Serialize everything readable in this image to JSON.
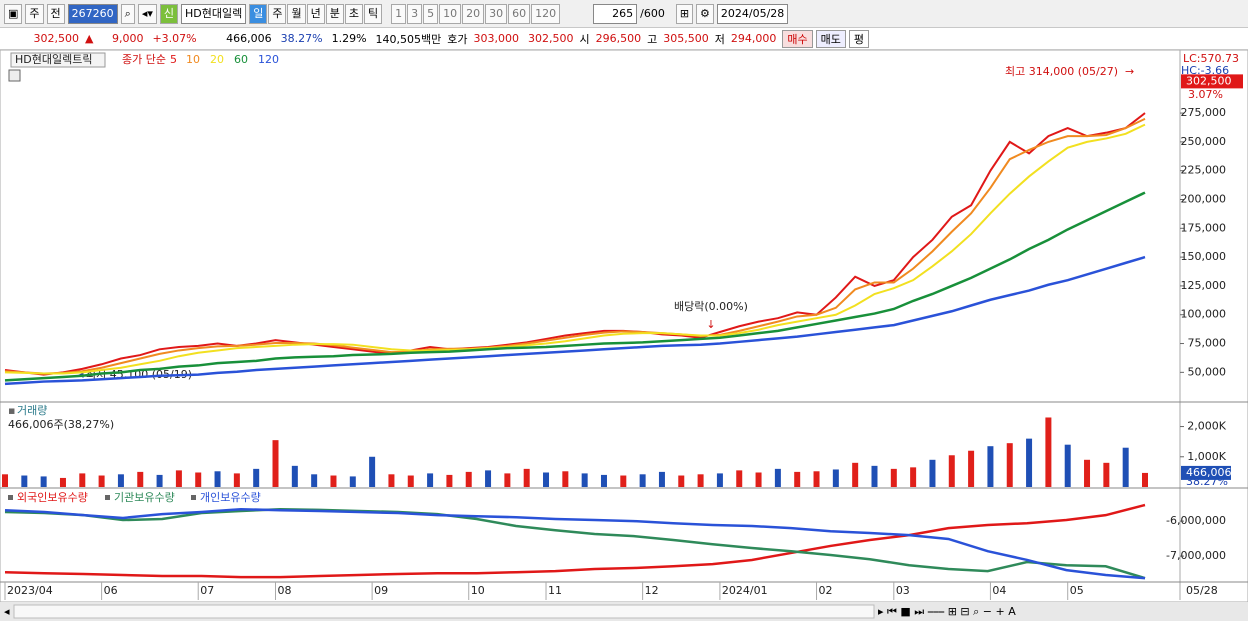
{
  "toolbar": {
    "market": "주",
    "prev": "전",
    "code": "267260",
    "new_badge": "신",
    "name": "HD현대일렉",
    "periods": [
      "일",
      "주",
      "월",
      "년",
      "분",
      "초",
      "틱"
    ],
    "intervals": [
      "1",
      "3",
      "5",
      "10",
      "20",
      "30",
      "60",
      "120"
    ],
    "count": "265",
    "max_count": "/600",
    "date": "2024/05/28"
  },
  "quote": {
    "price": "302,500",
    "arrow": "▲",
    "change": "9,000",
    "change_pct": "+3.07%",
    "volume": "466,006",
    "volume_pct": "38.27%",
    "turnover": "1.29%",
    "amount": "140,505백만",
    "ask_label": "호가",
    "ask": "303,000",
    "bid": "302,500",
    "open_label": "시",
    "open": "296,500",
    "high_label": "고",
    "high": "305,500",
    "low_label": "저",
    "low": "294,000",
    "buy": "매수",
    "sell": "매도",
    "avg": "평"
  },
  "chart_data": [
    {
      "type": "line",
      "title": "HD현대일렉트릭",
      "subtitle": "종가 단순",
      "categories": [
        "2023/04",
        null,
        null,
        null,
        null,
        "06",
        null,
        null,
        null,
        null,
        "07",
        null,
        null,
        null,
        "08",
        null,
        null,
        null,
        null,
        "09",
        null,
        null,
        null,
        null,
        "10",
        null,
        null,
        null,
        "11",
        null,
        null,
        null,
        null,
        "12",
        null,
        null,
        null,
        "2024/01",
        null,
        null,
        null,
        null,
        "02",
        null,
        null,
        null,
        "03",
        null,
        null,
        null,
        null,
        "04",
        null,
        null,
        null,
        "05",
        null,
        null,
        null,
        null
      ],
      "last_date": "05/28",
      "series": [
        {
          "name": "5",
          "color": "#e01818",
          "values": [
            52000,
            50000,
            48000,
            50000,
            53000,
            57000,
            62000,
            65000,
            70000,
            72000,
            73000,
            75000,
            73000,
            75000,
            78000,
            76000,
            74000,
            72000,
            70000,
            68000,
            66000,
            69000,
            72000,
            70000,
            71000,
            72000,
            74000,
            76000,
            79000,
            82000,
            84000,
            86000,
            86000,
            85000,
            83000,
            82000,
            80000,
            85000,
            90000,
            94000,
            97000,
            102000,
            100000,
            115000,
            133000,
            125000,
            130000,
            150000,
            165000,
            185000,
            195000,
            225000,
            250000,
            240000,
            255000,
            262000,
            255000,
            258000,
            262000,
            275000
          ]
        },
        {
          "name": "10",
          "color": "#f08a20",
          "values": [
            51000,
            50000,
            49000,
            49500,
            51000,
            54000,
            58000,
            62000,
            66000,
            69000,
            71000,
            72500,
            73000,
            74000,
            75500,
            75500,
            75000,
            73500,
            71500,
            69500,
            67500,
            68000,
            70000,
            70500,
            70500,
            71500,
            73000,
            75000,
            77500,
            80000,
            82500,
            84500,
            85500,
            85000,
            84000,
            83000,
            81500,
            82500,
            86000,
            90000,
            94000,
            98500,
            100000,
            106000,
            122000,
            128000,
            128000,
            140000,
            155000,
            172000,
            188000,
            210000,
            235000,
            243000,
            250000,
            255000,
            255000,
            256000,
            262000,
            270000
          ]
        },
        {
          "name": "20",
          "color": "#f2e020",
          "values": [
            50000,
            49500,
            49000,
            49000,
            50000,
            52000,
            54000,
            57000,
            60000,
            64000,
            67000,
            69000,
            71000,
            72000,
            73000,
            74000,
            74500,
            74500,
            74000,
            72000,
            70000,
            69000,
            69000,
            69500,
            70000,
            71000,
            72000,
            73500,
            75000,
            77000,
            79500,
            82000,
            83500,
            84000,
            84000,
            83000,
            82000,
            82000,
            84000,
            87000,
            91000,
            94000,
            97000,
            100000,
            108000,
            118000,
            123000,
            130000,
            142000,
            155000,
            170000,
            188000,
            205000,
            220000,
            233000,
            245000,
            250000,
            253000,
            257000,
            265000
          ]
        },
        {
          "name": "60",
          "color": "#18903a",
          "values": [
            43000,
            44000,
            45000,
            46000,
            47000,
            49000,
            50000,
            52000,
            53000,
            55000,
            56000,
            58000,
            59000,
            60000,
            62000,
            63000,
            63500,
            64000,
            65000,
            65500,
            66000,
            67000,
            67500,
            68000,
            69000,
            70000,
            71000,
            71500,
            72000,
            73000,
            74000,
            75000,
            75500,
            76000,
            77000,
            78000,
            79000,
            80000,
            82000,
            84000,
            86000,
            89000,
            92000,
            95000,
            98000,
            101000,
            105000,
            112000,
            118000,
            125000,
            132000,
            140000,
            148000,
            157000,
            165000,
            174000,
            182000,
            190000,
            198000,
            206000
          ]
        },
        {
          "name": "120",
          "color": "#2a52d8",
          "values": [
            40000,
            41000,
            42000,
            42500,
            43000,
            44000,
            45000,
            46000,
            47000,
            47500,
            48000,
            49500,
            50500,
            52000,
            53000,
            54000,
            55000,
            56000,
            57000,
            58000,
            59000,
            60000,
            61000,
            62000,
            63000,
            64000,
            65000,
            66000,
            67000,
            68000,
            69000,
            70000,
            71000,
            72000,
            73000,
            73500,
            74000,
            75000,
            76500,
            78000,
            79500,
            81000,
            83000,
            85000,
            87000,
            89000,
            91000,
            95000,
            99000,
            103000,
            108000,
            113000,
            117000,
            121000,
            126000,
            130000,
            135000,
            140000,
            145000,
            150000
          ]
        }
      ],
      "ylim": [
        26000,
        328000
      ],
      "yticks": [
        {
          "value": 50000,
          "label": "50,000"
        },
        {
          "value": 75000,
          "label": "75,000"
        },
        {
          "value": 100000,
          "label": "100,000"
        },
        {
          "value": 125000,
          "label": "125,000"
        },
        {
          "value": 150000,
          "label": "150,000"
        },
        {
          "value": 175000,
          "label": "175,000"
        },
        {
          "value": 200000,
          "label": "200,000"
        },
        {
          "value": 225000,
          "label": "225,000"
        },
        {
          "value": 250000,
          "label": "250,000"
        },
        {
          "value": 275000,
          "label": "275,000"
        }
      ],
      "price_label": {
        "value": 302500,
        "label": "302,500"
      },
      "side_labels": [
        "LC:570.73",
        "HC:-3.66",
        "3.07%"
      ],
      "annotations": [
        "최고 314,000 (05/27)",
        "최저 45,100 (05/19)",
        "배당락(0.00%)"
      ]
    },
    {
      "type": "bar",
      "title": "거래량",
      "subtitle": "466,006주(38,27%)",
      "values": [
        420000,
        380000,
        350000,
        300000,
        450000,
        380000,
        420000,
        500000,
        400000,
        550000,
        480000,
        520000,
        450000,
        600000,
        1550000,
        700000,
        420000,
        380000,
        350000,
        1000000,
        420000,
        380000,
        450000,
        400000,
        500000,
        550000,
        450000,
        600000,
        480000,
        520000,
        450000,
        400000,
        380000,
        420000,
        500000,
        380000,
        420000,
        450000,
        550000,
        480000,
        600000,
        500000,
        520000,
        580000,
        800000,
        700000,
        600000,
        650000,
        900000,
        1050000,
        1200000,
        1350000,
        1450000,
        1600000,
        2300000,
        1400000,
        900000,
        800000,
        1300000,
        466006
      ],
      "colors": [
        "#e0201a",
        "#1f4fb5",
        "#1f4fb5",
        "#e0201a",
        "#e0201a",
        "#e0201a",
        "#1f4fb5",
        "#e0201a",
        "#1f4fb5",
        "#e0201a",
        "#e0201a",
        "#1f4fb5",
        "#e0201a",
        "#1f4fb5",
        "#e0201a",
        "#1f4fb5",
        "#1f4fb5",
        "#e0201a",
        "#1f4fb5",
        "#1f4fb5",
        "#e0201a",
        "#e0201a",
        "#1f4fb5",
        "#e0201a",
        "#e0201a",
        "#1f4fb5",
        "#e0201a",
        "#e0201a",
        "#1f4fb5",
        "#e0201a",
        "#1f4fb5",
        "#1f4fb5",
        "#e0201a",
        "#1f4fb5",
        "#1f4fb5",
        "#e0201a",
        "#e0201a",
        "#1f4fb5",
        "#e0201a",
        "#e0201a",
        "#1f4fb5",
        "#e0201a",
        "#e0201a",
        "#1f4fb5",
        "#e0201a",
        "#1f4fb5",
        "#e0201a",
        "#e0201a",
        "#1f4fb5",
        "#e0201a",
        "#e0201a",
        "#1f4fb5",
        "#e0201a",
        "#1f4fb5",
        "#e0201a",
        "#1f4fb5",
        "#e0201a",
        "#e0201a",
        "#1f4fb5",
        "#e0201a"
      ],
      "ylim": [
        0,
        2680000
      ],
      "yticks": [
        {
          "value": 1000000,
          "label": "1,000K"
        },
        {
          "value": 2000000,
          "label": "2,000K"
        }
      ],
      "last_label": {
        "value": 466006,
        "label": "466,006"
      },
      "last_pct": "38.27%"
    },
    {
      "type": "line",
      "series": [
        {
          "name": "외국인보유수량",
          "color": "#e01818",
          "values": [
            -7460000,
            -7490000,
            -7510000,
            -7540000,
            -7570000,
            -7570000,
            -7600000,
            -7600000,
            -7570000,
            -7540000,
            -7510000,
            -7490000,
            -7490000,
            -7460000,
            -7430000,
            -7370000,
            -7340000,
            -7290000,
            -7230000,
            -7110000,
            -6910000,
            -6710000,
            -6540000,
            -6400000,
            -6200000,
            -6110000,
            -6060000,
            -5970000,
            -5830000,
            -5540000
          ]
        },
        {
          "name": "기관보유수량",
          "color": "#2f8a5a",
          "values": [
            -5740000,
            -5770000,
            -5830000,
            -5970000,
            -5940000,
            -5770000,
            -5710000,
            -5660000,
            -5680000,
            -5710000,
            -5740000,
            -5800000,
            -5940000,
            -6140000,
            -6260000,
            -6370000,
            -6430000,
            -6540000,
            -6660000,
            -6770000,
            -6860000,
            -6970000,
            -7090000,
            -7260000,
            -7370000,
            -7430000,
            -7170000,
            -7260000,
            -7290000,
            -7630000
          ]
        },
        {
          "name": "개인보유수량",
          "color": "#2a52d8",
          "values": [
            -5690000,
            -5740000,
            -5830000,
            -5910000,
            -5800000,
            -5740000,
            -5660000,
            -5690000,
            -5710000,
            -5740000,
            -5770000,
            -5830000,
            -5860000,
            -5890000,
            -5940000,
            -5970000,
            -6000000,
            -6060000,
            -6110000,
            -6140000,
            -6200000,
            -6290000,
            -6340000,
            -6400000,
            -6510000,
            -6860000,
            -7110000,
            -7400000,
            -7540000,
            -7630000
          ]
        }
      ],
      "ylim": [
        -7740000,
        -5140000
      ],
      "yticks": [
        {
          "value": -6000000,
          "label": "-6,000,000"
        },
        {
          "value": -7000000,
          "label": "-7,000,000"
        }
      ]
    }
  ]
}
